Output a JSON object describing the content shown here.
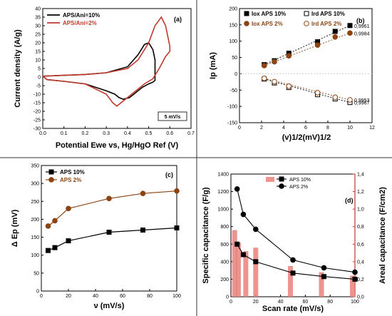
{
  "chart_data": [
    {
      "id": "a",
      "type": "line",
      "panel_label": "(a)",
      "xlabel": "Potential Ewe vs, Hg/HgO Ref (V)",
      "ylabel": "Current density (A/g)",
      "xlim": [
        0.0,
        0.7
      ],
      "ylim": [
        -30,
        40
      ],
      "xticks": [
        "0.0",
        "0.1",
        "0.2",
        "0.3",
        "0.4",
        "0.5",
        "0.6",
        "0.7"
      ],
      "yticks": [
        "-30",
        "-25",
        "-20",
        "-15",
        "-10",
        "-5",
        "0",
        "5",
        "10",
        "15",
        "20",
        "25",
        "30",
        "35",
        "40"
      ],
      "annotation": "5 mV/s",
      "series": [
        {
          "name": "APS/Ani=10%",
          "color": "#000000",
          "x": [
            0.0,
            0.1,
            0.2,
            0.3,
            0.4,
            0.45,
            0.48,
            0.5,
            0.52,
            0.53,
            0.53,
            0.52,
            0.5,
            0.47,
            0.44,
            0.41,
            0.38,
            0.36,
            0.34,
            0.3,
            0.2,
            0.1,
            0.02,
            0.0
          ],
          "y": [
            0.5,
            1.0,
            1.5,
            2.5,
            6,
            13,
            19,
            20,
            16,
            10,
            -2,
            -3,
            -4,
            -6,
            -9,
            -12,
            -13,
            -12,
            -10,
            -8,
            -4,
            -2.5,
            -1.5,
            0.5
          ]
        },
        {
          "name": "APS/Ani=2%",
          "color": "#c0392b",
          "x": [
            0.0,
            0.1,
            0.2,
            0.3,
            0.4,
            0.45,
            0.5,
            0.53,
            0.56,
            0.58,
            0.6,
            0.6,
            0.58,
            0.55,
            0.52,
            0.48,
            0.44,
            0.4,
            0.37,
            0.35,
            0.33,
            0.3,
            0.2,
            0.1,
            0.02,
            0.0
          ],
          "y": [
            0.5,
            1.0,
            1.5,
            2.5,
            5,
            10,
            20,
            30,
            35,
            30,
            18,
            15,
            12,
            5,
            -1,
            -4,
            -8,
            -12,
            -15,
            -17,
            -15,
            -10,
            -4,
            -2.5,
            -1.5,
            0.5
          ]
        }
      ]
    },
    {
      "id": "b",
      "type": "scatter",
      "panel_label": "(b)",
      "xlabel": "(v)1/2(mV)1/2",
      "ylabel": "Ip (mA)",
      "xlim": [
        0,
        12
      ],
      "ylim": [
        -150,
        200
      ],
      "xticks": [
        "0",
        "2",
        "4",
        "6",
        "8",
        "10",
        "12"
      ],
      "yticks": [
        "-150",
        "-100",
        "-50",
        "0",
        "50",
        "100",
        "150",
        "200"
      ],
      "series": [
        {
          "name": "Iox APS 10%",
          "color": "#000000",
          "marker": "square-filled",
          "x": [
            2.24,
            3.16,
            4.47,
            7.07,
            8.66,
            10.0
          ],
          "y": [
            28,
            40,
            63,
            98,
            130,
            148
          ],
          "r2": "0,9961"
        },
        {
          "name": "Ird APS 10%",
          "color": "#000000",
          "marker": "square-open",
          "x": [
            2.24,
            3.16,
            4.47,
            7.07,
            8.66,
            10.0
          ],
          "y": [
            -16,
            -28,
            -42,
            -64,
            -77,
            -88
          ],
          "r2": "0,9967"
        },
        {
          "name": "Iox APS 2%",
          "color": "#8b4513",
          "marker": "circle-filled",
          "x": [
            2.24,
            3.16,
            4.47,
            7.07,
            8.66,
            10.0
          ],
          "y": [
            25,
            37,
            55,
            88,
            113,
            125
          ],
          "r2": "0,9984"
        },
        {
          "name": "Ird APS 2%",
          "color": "#8b4513",
          "marker": "circle-open",
          "x": [
            2.24,
            3.16,
            4.47,
            7.07,
            8.66,
            10.0
          ],
          "y": [
            -14,
            -24,
            -38,
            -58,
            -72,
            -80
          ],
          "r2": "0,9953"
        }
      ]
    },
    {
      "id": "c",
      "type": "line",
      "panel_label": "(c)",
      "xlabel": "ν (mV/s)",
      "ylabel": "Δ Ep (mV)",
      "xlim": [
        0,
        100
      ],
      "ylim": [
        0,
        350
      ],
      "xticks": [
        "0",
        "20",
        "40",
        "60",
        "80",
        "100"
      ],
      "yticks": [
        "0",
        "50",
        "100",
        "150",
        "200",
        "250",
        "300",
        "350"
      ],
      "series": [
        {
          "name": "APS 10%",
          "color": "#000000",
          "marker": "square",
          "x": [
            5,
            10,
            20,
            50,
            75,
            100
          ],
          "y": [
            113,
            121,
            140,
            164,
            170,
            176
          ]
        },
        {
          "name": "APS 2%",
          "color": "#8b4513",
          "marker": "circle",
          "x": [
            5,
            10,
            20,
            50,
            75,
            100
          ],
          "y": [
            181,
            196,
            230,
            258,
            272,
            279
          ]
        }
      ]
    },
    {
      "id": "d",
      "type": "bar",
      "panel_label": "(d)",
      "xlabel": "Scan rate (mV/s)",
      "ylabel": "Specific capacitance (F/g)",
      "ylabel_right": "Areal capacitance (F/cm2)",
      "xlim": [
        0,
        100
      ],
      "ylim": [
        0,
        1400
      ],
      "ylim_right": [
        0,
        1.4
      ],
      "xticks": [
        "0",
        "20",
        "40",
        "60",
        "80",
        "100"
      ],
      "yticks": [
        "0",
        "200",
        "400",
        "600",
        "800",
        "1000",
        "1200",
        "1400"
      ],
      "yticks_right": [
        "0,0",
        "0,2",
        "0,4",
        "0,6",
        "0,8",
        "1,0",
        "1,2",
        "1,4"
      ],
      "bars": {
        "name": "",
        "color": "#e8827a",
        "x": [
          3,
          6,
          12,
          20,
          48,
          73,
          98
        ],
        "values": [
          0.76,
          0.62,
          0.52,
          0.56,
          0.35,
          0.28,
          0.24
        ]
      },
      "series": [
        {
          "name": "APS 10%",
          "color": "#000000",
          "marker": "square",
          "x": [
            5,
            10,
            20,
            50,
            75,
            100
          ],
          "y": [
            600,
            480,
            400,
            270,
            230,
            200
          ]
        },
        {
          "name": "APS 2%",
          "color": "#000000",
          "marker": "circle",
          "x": [
            5,
            10,
            20,
            50,
            75,
            100
          ],
          "y": [
            1230,
            940,
            770,
            420,
            330,
            280
          ]
        }
      ]
    }
  ]
}
